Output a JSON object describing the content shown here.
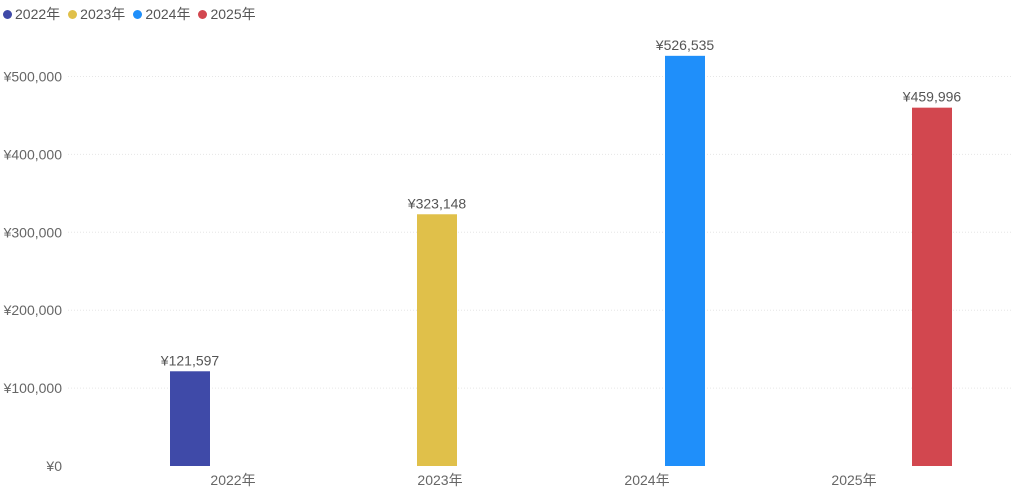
{
  "chart_data": {
    "type": "bar",
    "title": "",
    "xlabel": "",
    "ylabel": "",
    "categories": [
      "2022年",
      "2023年",
      "2024年",
      "2025年"
    ],
    "series": [
      {
        "name": "2022年",
        "color": "#3f4aa8",
        "values": [
          121597,
          null,
          null,
          null
        ]
      },
      {
        "name": "2023年",
        "color": "#e0c04a",
        "values": [
          null,
          323148,
          null,
          null
        ]
      },
      {
        "name": "2024年",
        "color": "#1f8ffa",
        "values": [
          null,
          null,
          526535,
          null
        ]
      },
      {
        "name": "2025年",
        "color": "#d2474f",
        "values": [
          null,
          null,
          null,
          459996
        ]
      }
    ],
    "data_labels": [
      "¥121,597",
      "¥323,148",
      "¥526,535",
      "¥459,996"
    ],
    "yticks": [
      0,
      100000,
      200000,
      300000,
      400000,
      500000
    ],
    "ytick_labels": [
      "¥0",
      "¥100,000",
      "¥200,000",
      "¥300,000",
      "¥400,000",
      "¥500,000"
    ],
    "ylim": [
      0,
      550000
    ],
    "grid": true,
    "legend_position": "top-left"
  }
}
